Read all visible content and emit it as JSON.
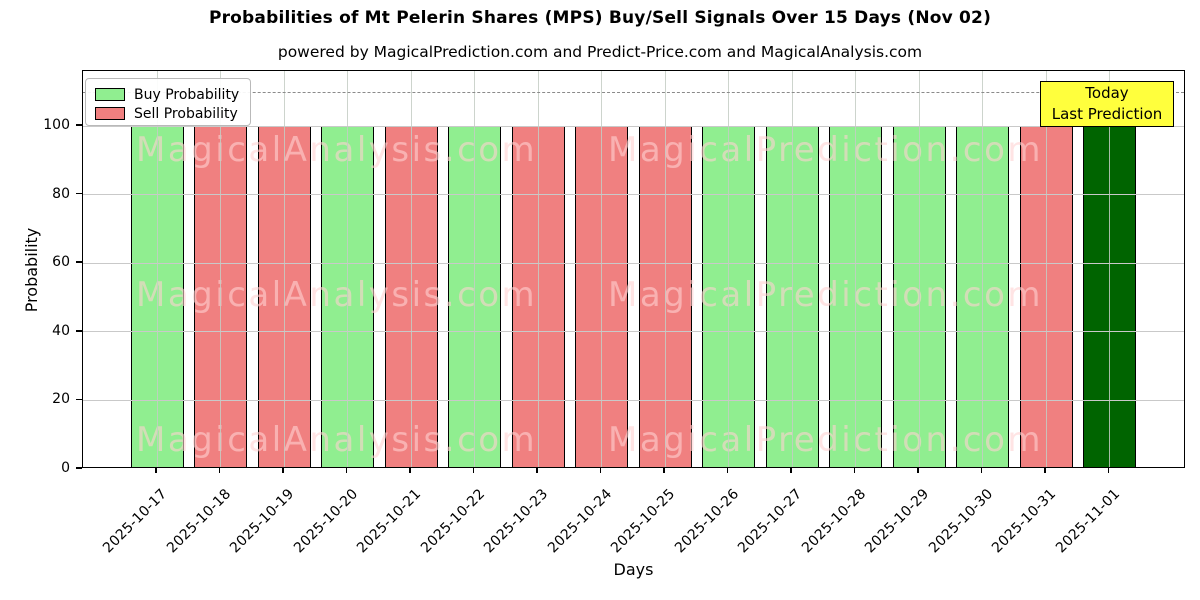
{
  "chart_data": {
    "type": "bar",
    "title": "Probabilities of Mt Pelerin Shares (MPS) Buy/Sell Signals Over 15 Days (Nov 02)",
    "subtitle": "powered by MagicalPrediction.com and Predict-Price.com and MagicalAnalysis.com",
    "xlabel": "Days",
    "ylabel": "Probability",
    "categories": [
      "2025-10-17",
      "2025-10-18",
      "2025-10-19",
      "2025-10-20",
      "2025-10-21",
      "2025-10-22",
      "2025-10-23",
      "2025-10-24",
      "2025-10-25",
      "2025-10-26",
      "2025-10-27",
      "2025-10-28",
      "2025-10-29",
      "2025-10-30",
      "2025-10-31",
      "2025-11-01"
    ],
    "values": [
      100,
      100,
      100,
      100,
      100,
      100,
      100,
      100,
      100,
      100,
      100,
      100,
      100,
      100,
      100,
      100
    ],
    "signals": [
      "buy",
      "sell",
      "sell",
      "buy",
      "sell",
      "buy",
      "sell",
      "sell",
      "sell",
      "buy",
      "buy",
      "buy",
      "buy",
      "buy",
      "sell",
      "today"
    ],
    "colors": {
      "buy": "#90EE90",
      "sell": "#F08080",
      "today": "#006400"
    },
    "ylim": [
      0,
      116
    ],
    "yticks": [
      0,
      20,
      40,
      60,
      80,
      100
    ],
    "grid": true,
    "dashed_line_y": 110,
    "legend": {
      "position": "upper left",
      "entries": [
        {
          "label": "Buy Probability",
          "color": "#90EE90"
        },
        {
          "label": "Sell Probability",
          "color": "#F08080"
        }
      ]
    },
    "annotation": {
      "line1": "Today",
      "line2": "Last Prediction",
      "bg": "#FFFF3D",
      "border": "#000000"
    },
    "watermarks": {
      "left_text": "MagicalAnalysis.com",
      "right_text": "MagicalPrediction.com"
    }
  }
}
